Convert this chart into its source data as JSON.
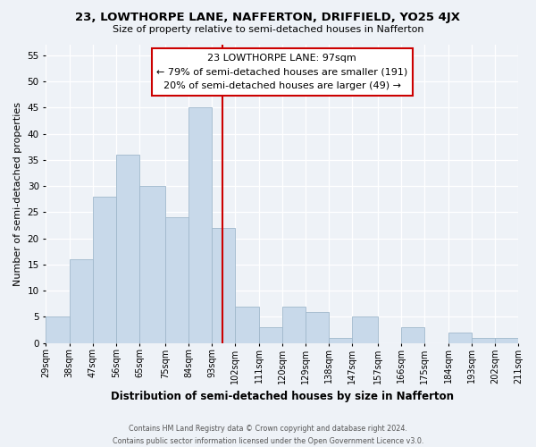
{
  "title": "23, LOWTHORPE LANE, NAFFERTON, DRIFFIELD, YO25 4JX",
  "subtitle": "Size of property relative to semi-detached houses in Nafferton",
  "xlabel": "Distribution of semi-detached houses by size in Nafferton",
  "ylabel": "Number of semi-detached properties",
  "bins": [
    29,
    38,
    47,
    56,
    65,
    75,
    84,
    93,
    102,
    111,
    120,
    129,
    138,
    147,
    157,
    166,
    175,
    184,
    193,
    202,
    211
  ],
  "counts": [
    5,
    16,
    28,
    36,
    30,
    24,
    45,
    22,
    7,
    3,
    7,
    6,
    1,
    5,
    0,
    3,
    0,
    2,
    1,
    1
  ],
  "bar_color": "#c8d9ea",
  "bar_edge_color": "#a0b8cc",
  "property_line_x": 97,
  "property_line_color": "#cc0000",
  "annotation_title": "23 LOWTHORPE LANE: 97sqm",
  "annotation_line1": "← 79% of semi-detached houses are smaller (191)",
  "annotation_line2": "20% of semi-detached houses are larger (49) →",
  "annotation_box_color": "#ffffff",
  "annotation_box_edge": "#cc0000",
  "tick_labels": [
    "29sqm",
    "38sqm",
    "47sqm",
    "56sqm",
    "65sqm",
    "75sqm",
    "84sqm",
    "93sqm",
    "102sqm",
    "111sqm",
    "120sqm",
    "129sqm",
    "138sqm",
    "147sqm",
    "157sqm",
    "166sqm",
    "175sqm",
    "184sqm",
    "193sqm",
    "202sqm",
    "211sqm"
  ],
  "ylim": [
    0,
    57
  ],
  "yticks": [
    0,
    5,
    10,
    15,
    20,
    25,
    30,
    35,
    40,
    45,
    50,
    55
  ],
  "footer_line1": "Contains HM Land Registry data © Crown copyright and database right 2024.",
  "footer_line2": "Contains public sector information licensed under the Open Government Licence v3.0.",
  "background_color": "#eef2f7"
}
